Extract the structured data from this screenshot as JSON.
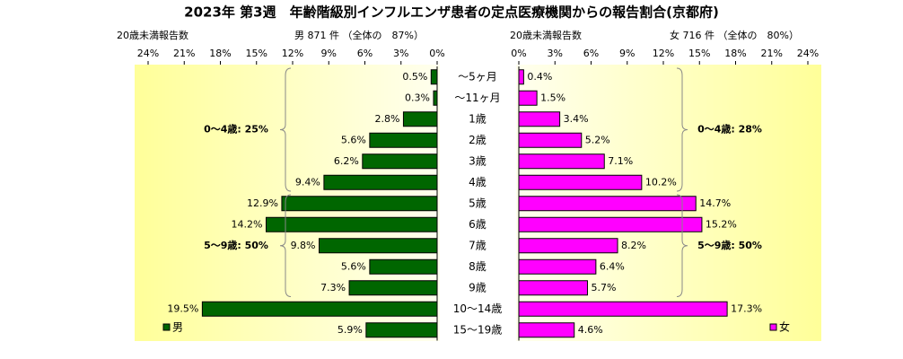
{
  "chart_data": {
    "type": "pyramid",
    "title": "2023年 第3週　年齢階級別インフルエンザ患者の定点医療機関からの報告割合(京都府)",
    "categories": [
      "～5ヶ月",
      "～11ヶ月",
      "1歳",
      "2歳",
      "3歳",
      "4歳",
      "5歳",
      "6歳",
      "7歳",
      "8歳",
      "9歳",
      "10～14歳",
      "15～19歳"
    ],
    "grid": false,
    "series": [
      {
        "name": "男",
        "count_label": "20歳未満報告数",
        "header": "男 871 件 （全体の　87%）",
        "color": "#006600",
        "values": [
          0.5,
          0.3,
          2.8,
          5.6,
          6.2,
          9.4,
          12.9,
          14.2,
          9.8,
          5.6,
          7.3,
          19.5,
          5.9
        ],
        "value_labels": [
          "0.5%",
          "0.3%",
          "2.8%",
          "5.6%",
          "6.2%",
          "9.4%",
          "12.9%",
          "14.2%",
          "9.8%",
          "5.6%",
          "7.3%",
          "19.5%",
          "5.9%"
        ],
        "xlim": [
          0,
          24
        ],
        "xticks": [
          {
            "value": 24,
            "label": "24%"
          },
          {
            "value": 21,
            "label": "21%"
          },
          {
            "value": 18,
            "label": "18%"
          },
          {
            "value": 15,
            "label": "15%"
          },
          {
            "value": 12,
            "label": "12%"
          },
          {
            "value": 9,
            "label": "9%"
          },
          {
            "value": 6,
            "label": "6%"
          },
          {
            "value": 3,
            "label": "3%"
          },
          {
            "value": 0,
            "label": "0%"
          }
        ],
        "annotations": [
          "0～4歳: 25%",
          "5～9歳: 50%"
        ]
      },
      {
        "name": "女",
        "count_label": "20歳未満報告数",
        "header": "女 716 件 （全体の　80%）",
        "color": "#ff00ff",
        "values": [
          0.4,
          1.5,
          3.4,
          5.2,
          7.1,
          10.2,
          14.7,
          15.2,
          8.2,
          6.4,
          5.7,
          17.3,
          4.6
        ],
        "value_labels": [
          "0.4%",
          "1.5%",
          "3.4%",
          "5.2%",
          "7.1%",
          "10.2%",
          "14.7%",
          "15.2%",
          "8.2%",
          "6.4%",
          "5.7%",
          "17.3%",
          "4.6%"
        ],
        "xlim": [
          0,
          24
        ],
        "xticks": [
          {
            "value": 0,
            "label": "0%"
          },
          {
            "value": 3,
            "label": "3%"
          },
          {
            "value": 6,
            "label": "6%"
          },
          {
            "value": 9,
            "label": "9%"
          },
          {
            "value": 12,
            "label": "12%"
          },
          {
            "value": 15,
            "label": "15%"
          },
          {
            "value": 18,
            "label": "18%"
          },
          {
            "value": 21,
            "label": "21%"
          },
          {
            "value": 24,
            "label": "24%"
          }
        ],
        "annotations": [
          "0～4歳: 28%",
          "5～9歳: 50%"
        ]
      }
    ]
  }
}
